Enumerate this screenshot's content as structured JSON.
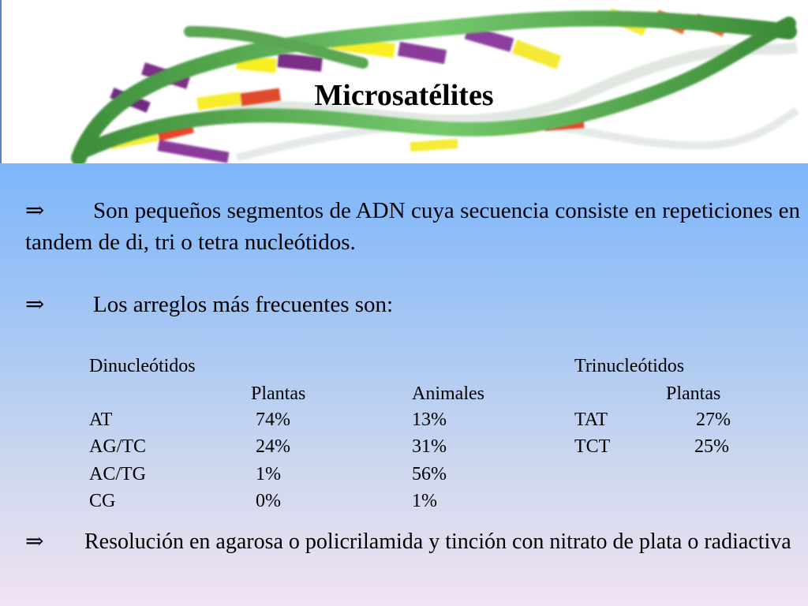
{
  "title": "Microsatélites",
  "bullets": {
    "arrow": "⇒",
    "b1": "Son pequeños segmentos de ADN cuya secuencia consiste en repeticiones en tandem de di, tri o tetra nucleótidos.",
    "b2": "Los arreglos más frecuentes son:",
    "b3": "Resolución en agarosa o policrilamida y tinción con nitrato de plata o radiactiva"
  },
  "table": {
    "dinuc_heading": "Dinucleótidos",
    "trinuc_heading": "Trinucleótidos",
    "col_plantas": "Plantas",
    "col_animales": "Animales",
    "tri_col_plantas": "Plantas",
    "dinuc_rows": [
      {
        "motif": "AT",
        "plantas": "74%",
        "animales": "13%"
      },
      {
        "motif": "AG/TC",
        "plantas": "24%",
        "animales": "31%"
      },
      {
        "motif": "AC/TG",
        "plantas": "1%",
        "animales": "56%"
      },
      {
        "motif": "CG",
        "plantas": "0%",
        "animales": "1%"
      }
    ],
    "trinuc_rows": [
      {
        "motif": "TAT",
        "plantas": "27%"
      },
      {
        "motif": "TCT",
        "plantas": "25%"
      }
    ]
  }
}
